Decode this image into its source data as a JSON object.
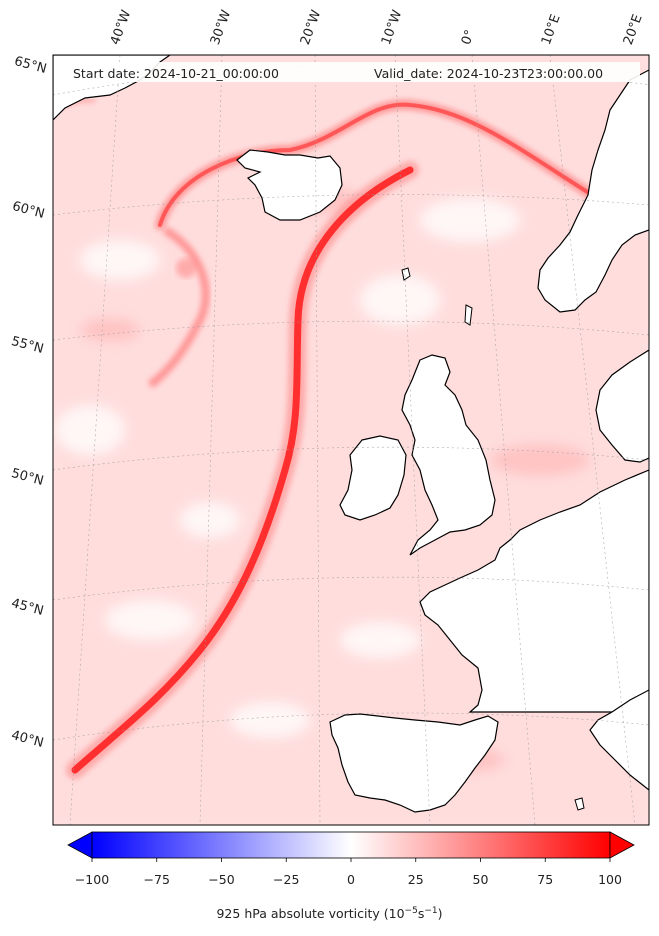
{
  "header": {
    "start": "Start date: 2024-10-21_00:00:00",
    "valid": "Valid_date: 2024-10-23T23:00:00.00"
  },
  "graticule": {
    "lon_labels": [
      "40°W",
      "30°W",
      "20°W",
      "10°W",
      "0°",
      "10°E",
      "20°E"
    ],
    "lat_labels": [
      "65°N",
      "60°N",
      "55°N",
      "50°N",
      "45°N",
      "40°N"
    ]
  },
  "colorbar": {
    "ticks": [
      "−100",
      "−75",
      "−50",
      "−25",
      "0",
      "25",
      "50",
      "75",
      "100"
    ],
    "min": -100,
    "max": 100,
    "label_text": "925 hPa absolute vorticity (10",
    "label_exp1": "−5",
    "label_mid": "s",
    "label_exp2": "−1",
    "label_end": ")",
    "neg_color": "#0000ff",
    "pos_color": "#ff0000"
  },
  "map": {
    "region": "North Atlantic and Western Europe",
    "field_color": "#ffe2e2",
    "land_color": "#ffffff",
    "coastline_color": "#000000"
  }
}
